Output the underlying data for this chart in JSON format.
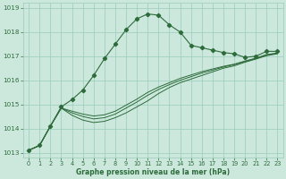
{
  "title": "Graphe pression niveau de la mer (hPa)",
  "bg_color": "#cce8dd",
  "grid_color": "#99ccbb",
  "line_color": "#2d6b3a",
  "xlim": [
    -0.5,
    23.5
  ],
  "ylim": [
    1012.8,
    1019.2
  ],
  "yticks": [
    1013,
    1014,
    1015,
    1016,
    1017,
    1018,
    1019
  ],
  "xticks": [
    0,
    1,
    2,
    3,
    4,
    5,
    6,
    7,
    8,
    9,
    10,
    11,
    12,
    13,
    14,
    15,
    16,
    17,
    18,
    19,
    20,
    21,
    22,
    23
  ],
  "series_main": [
    1013.1,
    1013.3,
    1014.1,
    1014.9,
    1015.2,
    1015.6,
    1016.2,
    1016.9,
    1017.5,
    1018.1,
    1018.55,
    1018.75,
    1018.7,
    1018.3,
    1018.0,
    1017.45,
    1017.35,
    1017.25,
    1017.15,
    1017.1,
    1016.95,
    1017.0,
    1017.2,
    1017.2
  ],
  "series_aux": [
    [
      1013.1,
      1013.3,
      1014.1,
      1014.85,
      1014.55,
      1014.35,
      1014.25,
      1014.3,
      1014.45,
      1014.65,
      1014.9,
      1015.15,
      1015.45,
      1015.7,
      1015.9,
      1016.05,
      1016.2,
      1016.35,
      1016.5,
      1016.6,
      1016.75,
      1016.88,
      1017.02,
      1017.1
    ],
    [
      1013.1,
      1013.3,
      1014.1,
      1014.85,
      1014.65,
      1014.5,
      1014.4,
      1014.45,
      1014.6,
      1014.85,
      1015.1,
      1015.38,
      1015.62,
      1015.82,
      1016.0,
      1016.15,
      1016.3,
      1016.42,
      1016.55,
      1016.65,
      1016.78,
      1016.9,
      1017.05,
      1017.12
    ],
    [
      1013.1,
      1013.3,
      1014.1,
      1014.85,
      1014.72,
      1014.6,
      1014.52,
      1014.57,
      1014.72,
      1014.97,
      1015.22,
      1015.5,
      1015.72,
      1015.9,
      1016.08,
      1016.22,
      1016.36,
      1016.47,
      1016.58,
      1016.67,
      1016.8,
      1016.92,
      1017.07,
      1017.13
    ]
  ]
}
